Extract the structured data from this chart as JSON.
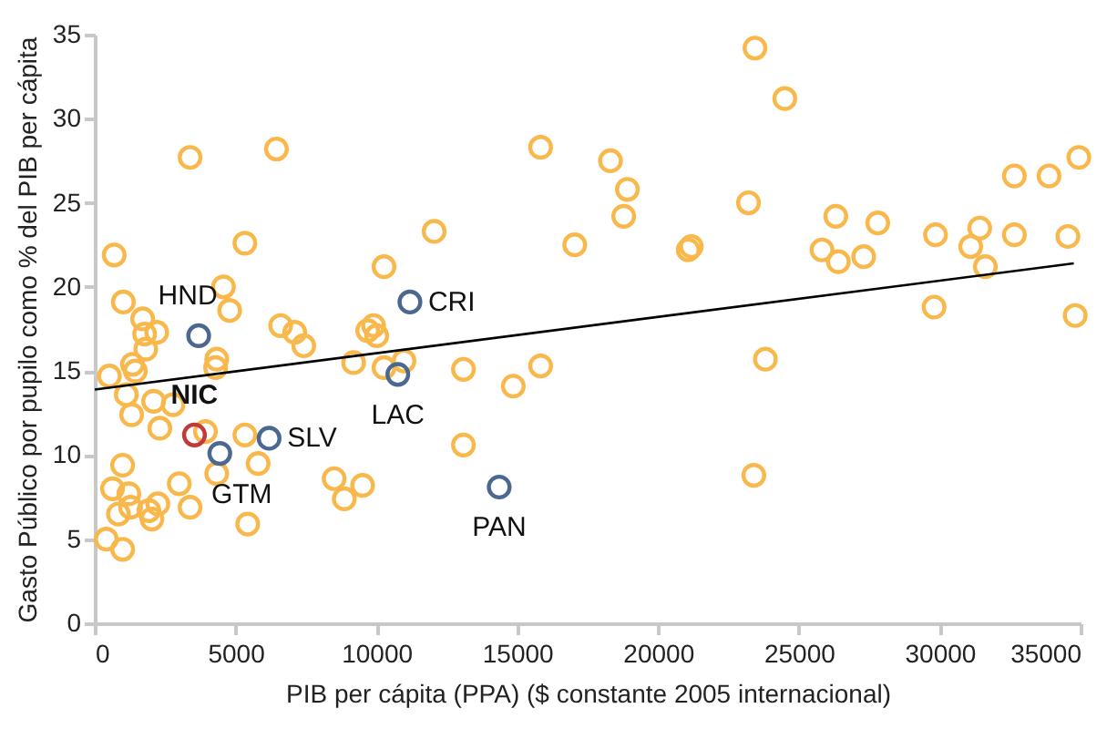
{
  "chart_data": {
    "type": "scatter",
    "xlabel": "PIB per cápita (PPA) ($ constante 2005 internacional)",
    "ylabel": "Gasto Público por pupilo como % del PIB per cápita",
    "xlim": [
      0,
      35000
    ],
    "xticks": [
      0,
      5000,
      10000,
      15000,
      20000,
      25000,
      30000,
      35000
    ],
    "ylim": [
      0,
      35
    ],
    "yticks": [
      0,
      5,
      10,
      15,
      20,
      25,
      30,
      35
    ],
    "grid": false,
    "marker": "circle",
    "series": [
      {
        "color": "#f9b84b",
        "x": [
          3385,
          6450,
          5330,
          690,
          10270,
          1015,
          1700,
          4570,
          4790,
          1770,
          2200,
          1810,
          6600,
          7100,
          7420,
          9690,
          10010,
          9900,
          9190,
          10270,
          10980,
          1340,
          520,
          1440,
          4330,
          4290,
          1120,
          2090,
          1310,
          2780,
          2310,
          3930,
          5330,
          5800,
          990,
          630,
          1210,
          840,
          1270,
          1920,
          2240,
          2030,
          3000,
          3385,
          4330,
          5430,
          8500,
          8860,
          9510,
          410,
          990,
          12050,
          15830,
          18310,
          18910,
          18780,
          17040,
          21070,
          21180,
          13090,
          14860,
          15830,
          13090,
          23440,
          24500,
          23210,
          26310,
          27800,
          25820,
          26400,
          27300,
          29850,
          31420,
          31100,
          31620,
          32650,
          32650,
          33880,
          34940,
          34550,
          29800,
          34810,
          23810,
          23400
        ],
        "values": [
          27.7,
          28.2,
          22.6,
          21.9,
          21.2,
          19.1,
          18.1,
          20.0,
          18.6,
          17.2,
          17.3,
          16.3,
          17.7,
          17.3,
          16.5,
          17.4,
          17.1,
          17.7,
          15.5,
          15.2,
          15.6,
          15.4,
          14.7,
          15.0,
          15.7,
          15.2,
          13.6,
          13.2,
          12.4,
          13.0,
          11.6,
          11.4,
          11.2,
          9.5,
          9.4,
          8.0,
          7.7,
          6.5,
          6.9,
          6.7,
          7.1,
          6.2,
          8.3,
          6.9,
          8.9,
          5.9,
          8.6,
          7.4,
          8.2,
          5.0,
          4.4,
          23.3,
          28.3,
          27.5,
          25.8,
          24.2,
          22.5,
          22.2,
          22.4,
          15.1,
          14.1,
          15.3,
          10.6,
          34.2,
          31.2,
          25.0,
          24.2,
          23.8,
          22.2,
          21.5,
          21.8,
          23.1,
          23.5,
          22.4,
          21.2,
          23.1,
          26.6,
          26.6,
          27.7,
          23.0,
          18.8,
          18.3,
          15.7,
          8.8
        ]
      },
      {
        "color": "#4a6890",
        "x": [
          3690,
          11190,
          10760,
          14360,
          4440,
          6190
        ],
        "values": [
          17.1,
          19.1,
          14.8,
          8.1,
          10.1,
          11.0
        ]
      },
      {
        "color": "#c0393b",
        "x": [
          3540
        ],
        "values": [
          11.2
        ]
      },
      {
        "type": "line",
        "marker": "none",
        "color": "#000000",
        "x": [
          0,
          34760
        ],
        "values": [
          13.9,
          21.4
        ]
      }
    ],
    "annotations": [
      {
        "text": "HND",
        "x": 3690,
        "y": 17.1
      },
      {
        "text": "CRI",
        "x": 11190,
        "y": 19.1
      },
      {
        "text": "LAC",
        "x": 10760,
        "y": 14.8
      },
      {
        "text": "PAN",
        "x": 14360,
        "y": 8.1
      },
      {
        "text": "GTM",
        "x": 4440,
        "y": 10.1
      },
      {
        "text": "SLV",
        "x": 6190,
        "y": 11.05
      },
      {
        "text": "NIC",
        "x": 3540,
        "y": 11.2
      }
    ]
  }
}
